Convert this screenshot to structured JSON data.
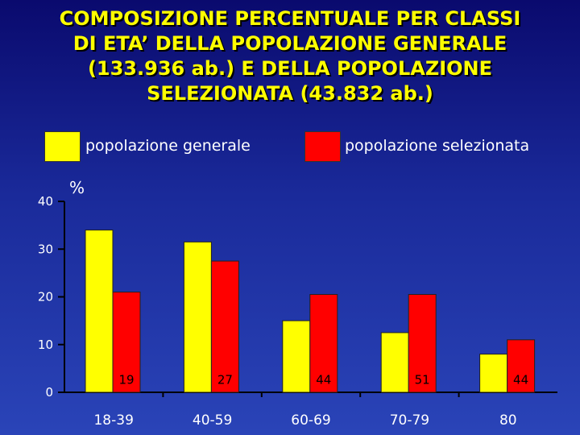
{
  "chart_data": {
    "type": "bar",
    "title": "COMPOSIZIONE PERCENTUALE PER CLASSI\nDI ETA’ DELLA POPOLAZIONE GENERALE\n(133.936 ab.) E DELLA POPOLAZIONE\nSELEZIONATA (43.832 ab.)",
    "ylabel": "%",
    "xlabel": "",
    "categories": [
      "18-39",
      "40-59",
      "60-69",
      "70-79",
      "80"
    ],
    "series": [
      {
        "name": "popolazione generale",
        "color": "#ffff00",
        "values": [
          34,
          31.5,
          15,
          12.5,
          8
        ]
      },
      {
        "name": "popolazione selezionata",
        "color": "#ff0000",
        "values": [
          21,
          27.5,
          20.5,
          20.5,
          11
        ]
      }
    ],
    "data_labels": [
      "19",
      "27",
      "44",
      "51",
      "44"
    ],
    "ylim": [
      0,
      40
    ],
    "yticks": [
      0,
      10,
      20,
      30,
      40
    ],
    "grid": false,
    "legend_position": "top"
  }
}
